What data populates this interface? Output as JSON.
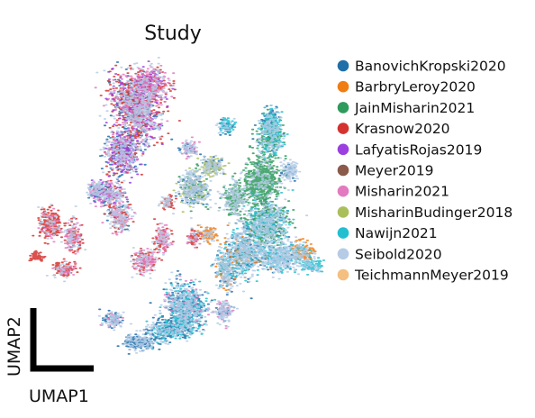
{
  "chart_data": {
    "type": "scatter",
    "title": "Study",
    "xlabel": "UMAP1",
    "ylabel": "UMAP2",
    "legend_position": "right",
    "grid": false,
    "series": [
      {
        "name": "BanovichKropski2020",
        "color": "#1f6fa8"
      },
      {
        "name": "BarbryLeroy2020",
        "color": "#f07d12"
      },
      {
        "name": "JainMisharin2021",
        "color": "#2e9a5c"
      },
      {
        "name": "Krasnow2020",
        "color": "#d3322f"
      },
      {
        "name": "LafyatisRojas2019",
        "color": "#9b3fe0"
      },
      {
        "name": "Meyer2019",
        "color": "#8a5a4a"
      },
      {
        "name": "Misharin2021",
        "color": "#e37ac0"
      },
      {
        "name": "MisharinBudinger2018",
        "color": "#a9bf5a"
      },
      {
        "name": "Nawijn2021",
        "color": "#22bfd0"
      },
      {
        "name": "Seibold2020",
        "color": "#b5cbe6"
      },
      {
        "name": "TeichmannMeyer2019",
        "color": "#f5bf80"
      }
    ]
  }
}
